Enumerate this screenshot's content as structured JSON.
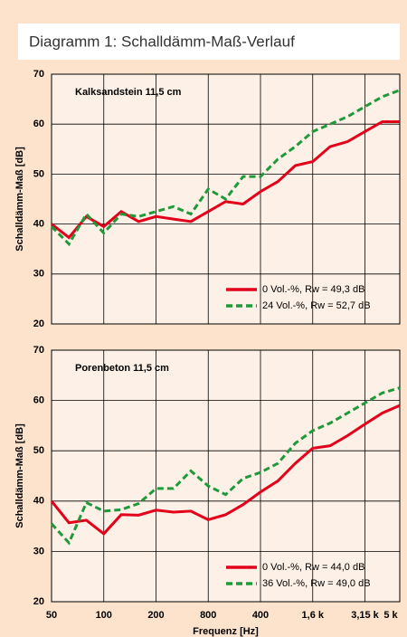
{
  "header": {
    "title": "Diagramm 1:  Schalldämm-Maß-Verlauf"
  },
  "chart_data": [
    {
      "type": "line",
      "title": "Kalksandstein 11,5 cm",
      "y_label": "Schalldämm-Maß [dB]",
      "ylim": [
        20,
        70
      ],
      "yticks": [
        20,
        30,
        40,
        50,
        60,
        70
      ],
      "grid": true,
      "legend": "lower right",
      "series": [
        {
          "name": "0 Vol.-%, Rw = 49,3 dB",
          "color": "#e3001b",
          "dash": "solid",
          "values": [
            40,
            37.3,
            41.5,
            39.5,
            42.5,
            40.5,
            41.5,
            41,
            40.5,
            42.5,
            44.5,
            44,
            46.5,
            48.5,
            51.7,
            52.5,
            55.5,
            56.5,
            58.5,
            60.5,
            60.5
          ]
        },
        {
          "name": "24 Vol.-%, Rw = 52,7 dB",
          "color": "#1f9a3a",
          "dash": "dashed",
          "values": [
            39.5,
            36,
            42,
            38.2,
            42,
            41.5,
            42.5,
            43.5,
            42,
            47,
            45,
            49.5,
            49.5,
            53,
            55.5,
            58.5,
            60,
            61.5,
            63.5,
            65.5,
            66.8
          ]
        }
      ]
    },
    {
      "type": "line",
      "title": "Porenbeton 11,5 cm",
      "y_label": "Schalldämm-Maß [dB]",
      "x_label": "Frequenz [Hz]",
      "ylim": [
        20,
        70
      ],
      "yticks": [
        20,
        30,
        40,
        50,
        60,
        70
      ],
      "grid": true,
      "legend": "lower right",
      "categories": [
        "50",
        null,
        null,
        "100",
        null,
        null,
        "200",
        null,
        null,
        "800",
        null,
        null,
        "400",
        null,
        null,
        "1,6 k",
        null,
        null,
        "3,15 k",
        null,
        "5 k"
      ],
      "series": [
        {
          "name": "0 Vol.-%,  Rw = 44,0 dB",
          "color": "#e3001b",
          "dash": "solid",
          "values": [
            40,
            35.7,
            36.2,
            33.5,
            37.3,
            37.2,
            38.2,
            37.8,
            38,
            36.3,
            37.3,
            39.3,
            41.8,
            44,
            47.5,
            50.5,
            51,
            53,
            55.3,
            57.5,
            59
          ]
        },
        {
          "name": "36 Vol.-%,  Rw = 49,0 dB",
          "color": "#1f9a3a",
          "dash": "dashed",
          "values": [
            35.5,
            31.7,
            39.7,
            38,
            38.3,
            39.5,
            42.5,
            42.5,
            46,
            43,
            41.3,
            44.5,
            45.7,
            47.5,
            51.5,
            54,
            55.5,
            57.5,
            59.5,
            61.5,
            62.5
          ]
        }
      ]
    }
  ]
}
